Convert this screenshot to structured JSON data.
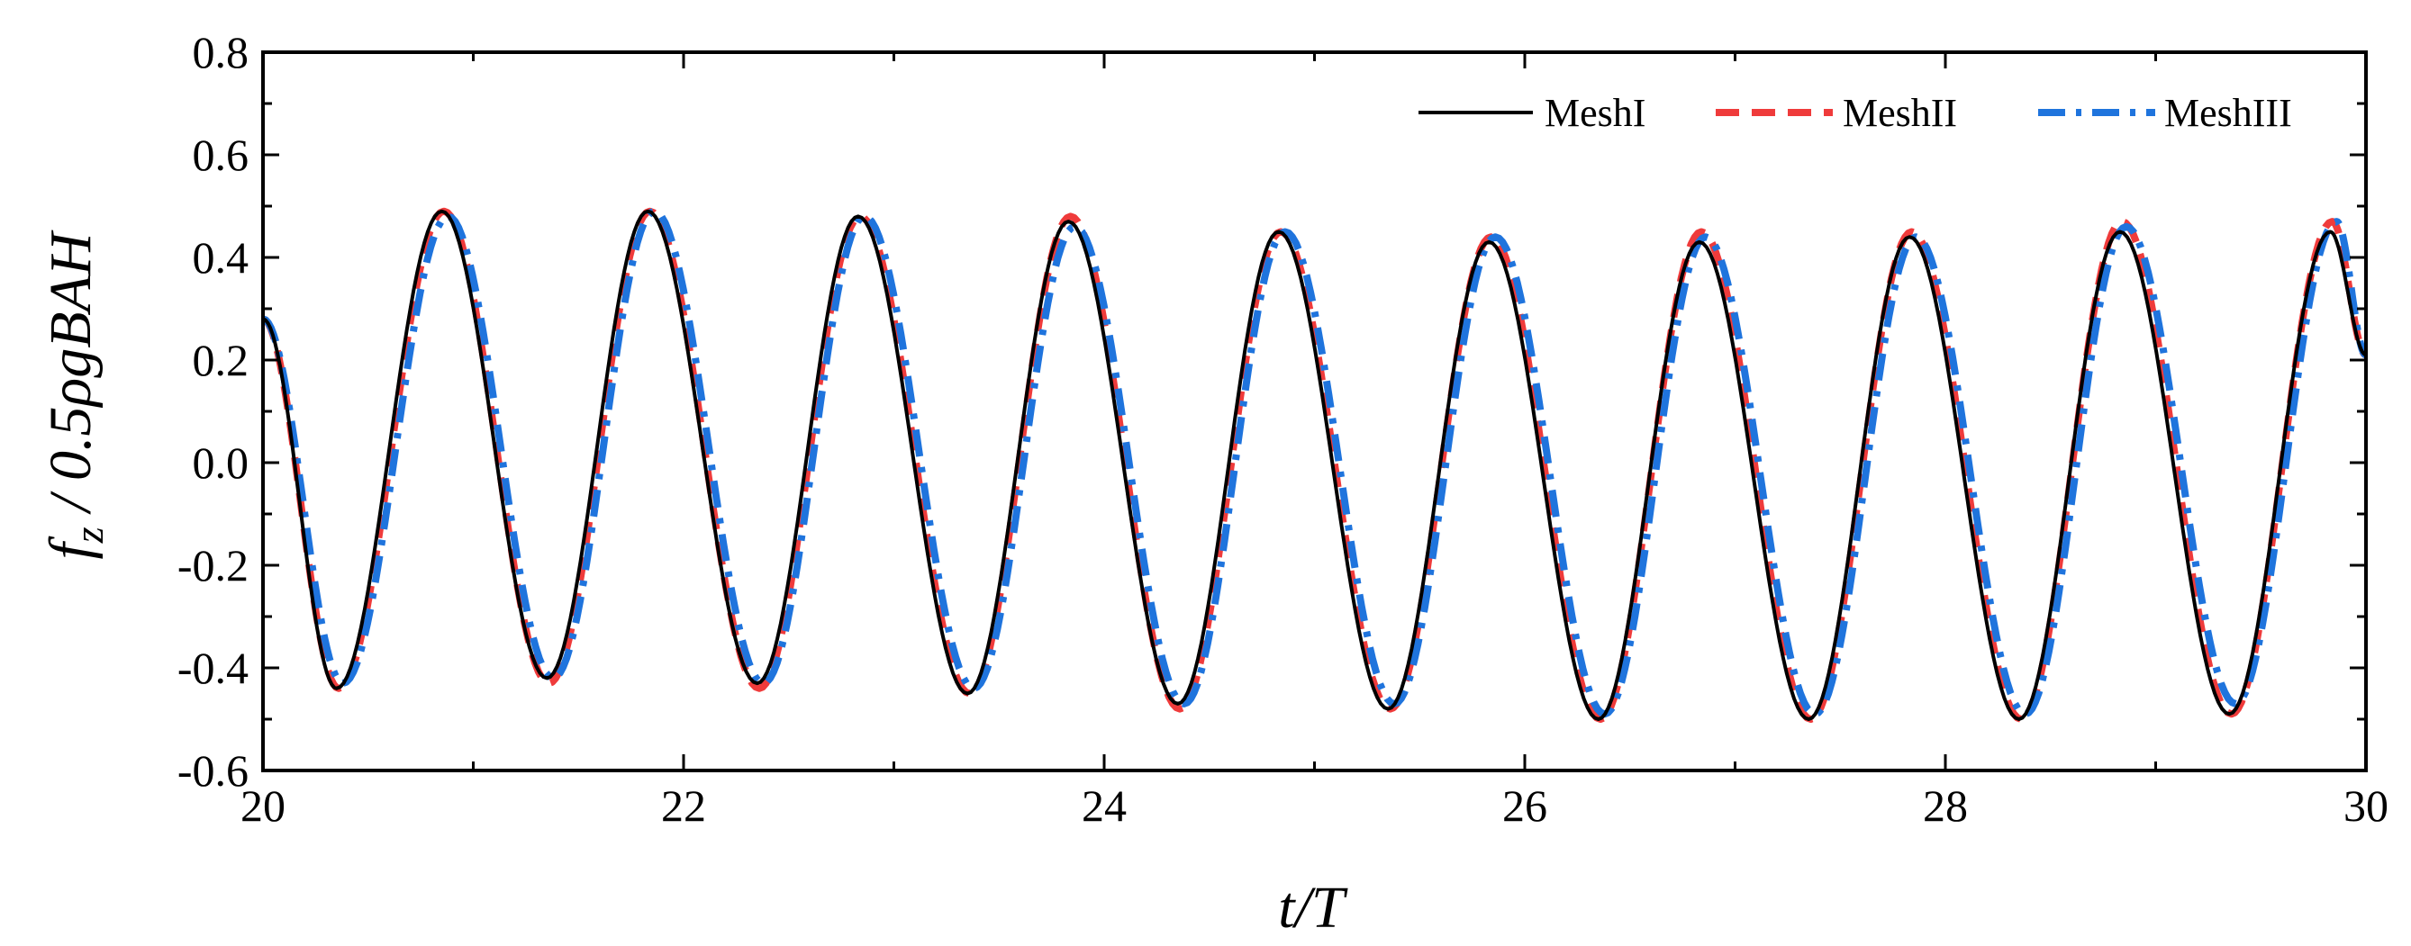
{
  "chart_data": {
    "type": "line",
    "title": "",
    "xlabel": "t/T",
    "ylabel": "f_z / 0.5ρgBAH",
    "ylabel_parts": {
      "f": "f",
      "sub": "z",
      "rest": " / 0.5ρgBAH"
    },
    "xlim": [
      20,
      30
    ],
    "ylim": [
      -0.6,
      0.8
    ],
    "xticks": [
      "20",
      "22",
      "24",
      "26",
      "28",
      "30"
    ],
    "yticks": [
      "-0.6",
      "-0.4",
      "-0.2",
      "0.0",
      "0.2",
      "0.4",
      "0.6",
      "0.8"
    ],
    "grid": false,
    "legend_position": "top-right",
    "series": [
      {
        "name": "MeshI",
        "color": "#000000",
        "style": "solid",
        "peaks": [
          [
            20.85,
            0.49
          ],
          [
            21.83,
            0.49
          ],
          [
            22.83,
            0.48
          ],
          [
            23.83,
            0.47
          ],
          [
            24.83,
            0.45
          ],
          [
            25.83,
            0.43
          ],
          [
            26.83,
            0.43
          ],
          [
            27.83,
            0.44
          ],
          [
            28.83,
            0.45
          ],
          [
            29.83,
            0.45
          ]
        ],
        "troughs": [
          [
            20.35,
            -0.44
          ],
          [
            21.35,
            -0.42
          ],
          [
            22.35,
            -0.43
          ],
          [
            23.35,
            -0.45
          ],
          [
            24.35,
            -0.47
          ],
          [
            25.35,
            -0.48
          ],
          [
            26.35,
            -0.5
          ],
          [
            27.35,
            -0.5
          ],
          [
            28.35,
            -0.5
          ],
          [
            29.35,
            -0.49
          ]
        ]
      },
      {
        "name": "MeshII",
        "color": "#ef3b3b",
        "style": "dash",
        "peaks": [
          [
            20.86,
            0.49
          ],
          [
            21.84,
            0.49
          ],
          [
            22.84,
            0.48
          ],
          [
            23.84,
            0.48
          ],
          [
            24.84,
            0.45
          ],
          [
            25.84,
            0.44
          ],
          [
            26.84,
            0.45
          ],
          [
            27.84,
            0.45
          ],
          [
            28.84,
            0.47
          ],
          [
            29.84,
            0.47
          ]
        ],
        "troughs": [
          [
            20.36,
            -0.44
          ],
          [
            21.36,
            -0.43
          ],
          [
            22.36,
            -0.44
          ],
          [
            23.36,
            -0.45
          ],
          [
            24.36,
            -0.48
          ],
          [
            25.36,
            -0.48
          ],
          [
            26.36,
            -0.5
          ],
          [
            27.36,
            -0.5
          ],
          [
            28.36,
            -0.5
          ],
          [
            29.36,
            -0.49
          ]
        ]
      },
      {
        "name": "MeshIII",
        "color": "#1f74dd",
        "style": "dashdot",
        "peaks": [
          [
            20.88,
            0.48
          ],
          [
            21.86,
            0.49
          ],
          [
            22.86,
            0.48
          ],
          [
            23.86,
            0.46
          ],
          [
            24.86,
            0.45
          ],
          [
            25.86,
            0.44
          ],
          [
            26.86,
            0.44
          ],
          [
            27.86,
            0.44
          ],
          [
            28.86,
            0.46
          ],
          [
            29.86,
            0.47
          ]
        ],
        "troughs": [
          [
            20.38,
            -0.43
          ],
          [
            21.38,
            -0.42
          ],
          [
            22.38,
            -0.43
          ],
          [
            23.38,
            -0.44
          ],
          [
            24.38,
            -0.47
          ],
          [
            25.38,
            -0.47
          ],
          [
            26.38,
            -0.49
          ],
          [
            27.38,
            -0.49
          ],
          [
            28.38,
            -0.49
          ],
          [
            29.38,
            -0.47
          ]
        ]
      }
    ],
    "start_value": 0.28,
    "end_value": 0.21
  }
}
